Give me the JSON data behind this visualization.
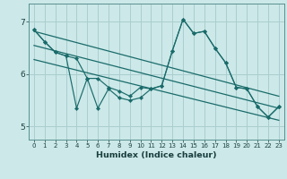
{
  "xlabel": "Humidex (Indice chaleur)",
  "bg_color": "#cce8e8",
  "grid_color": "#aacece",
  "line_color": "#1a6b6b",
  "xlim": [
    -0.5,
    23.5
  ],
  "ylim": [
    4.75,
    7.35
  ],
  "yticks": [
    5,
    6,
    7
  ],
  "xticks": [
    0,
    1,
    2,
    3,
    4,
    5,
    6,
    7,
    8,
    9,
    10,
    11,
    12,
    13,
    14,
    15,
    16,
    17,
    18,
    19,
    20,
    21,
    22,
    23
  ],
  "series1": [
    6.85,
    6.62,
    6.42,
    6.35,
    6.3,
    5.92,
    5.92,
    5.75,
    5.68,
    5.58,
    5.75,
    5.72,
    5.78,
    6.45,
    7.05,
    6.78,
    6.82,
    6.5,
    6.22,
    5.75,
    5.72,
    5.38,
    5.18,
    5.38
  ],
  "series2": [
    6.85,
    6.62,
    6.42,
    6.35,
    5.35,
    5.92,
    5.35,
    5.72,
    5.55,
    5.5,
    5.55,
    5.72,
    5.78,
    6.45,
    7.05,
    6.78,
    6.82,
    6.5,
    6.22,
    5.75,
    5.72,
    5.38,
    5.18,
    5.38
  ],
  "trend1_y_start": 6.82,
  "trend1_y_end": 5.58,
  "trend2_y_start": 6.55,
  "trend2_y_end": 5.35,
  "trend3_y_start": 6.28,
  "trend3_y_end": 5.12
}
